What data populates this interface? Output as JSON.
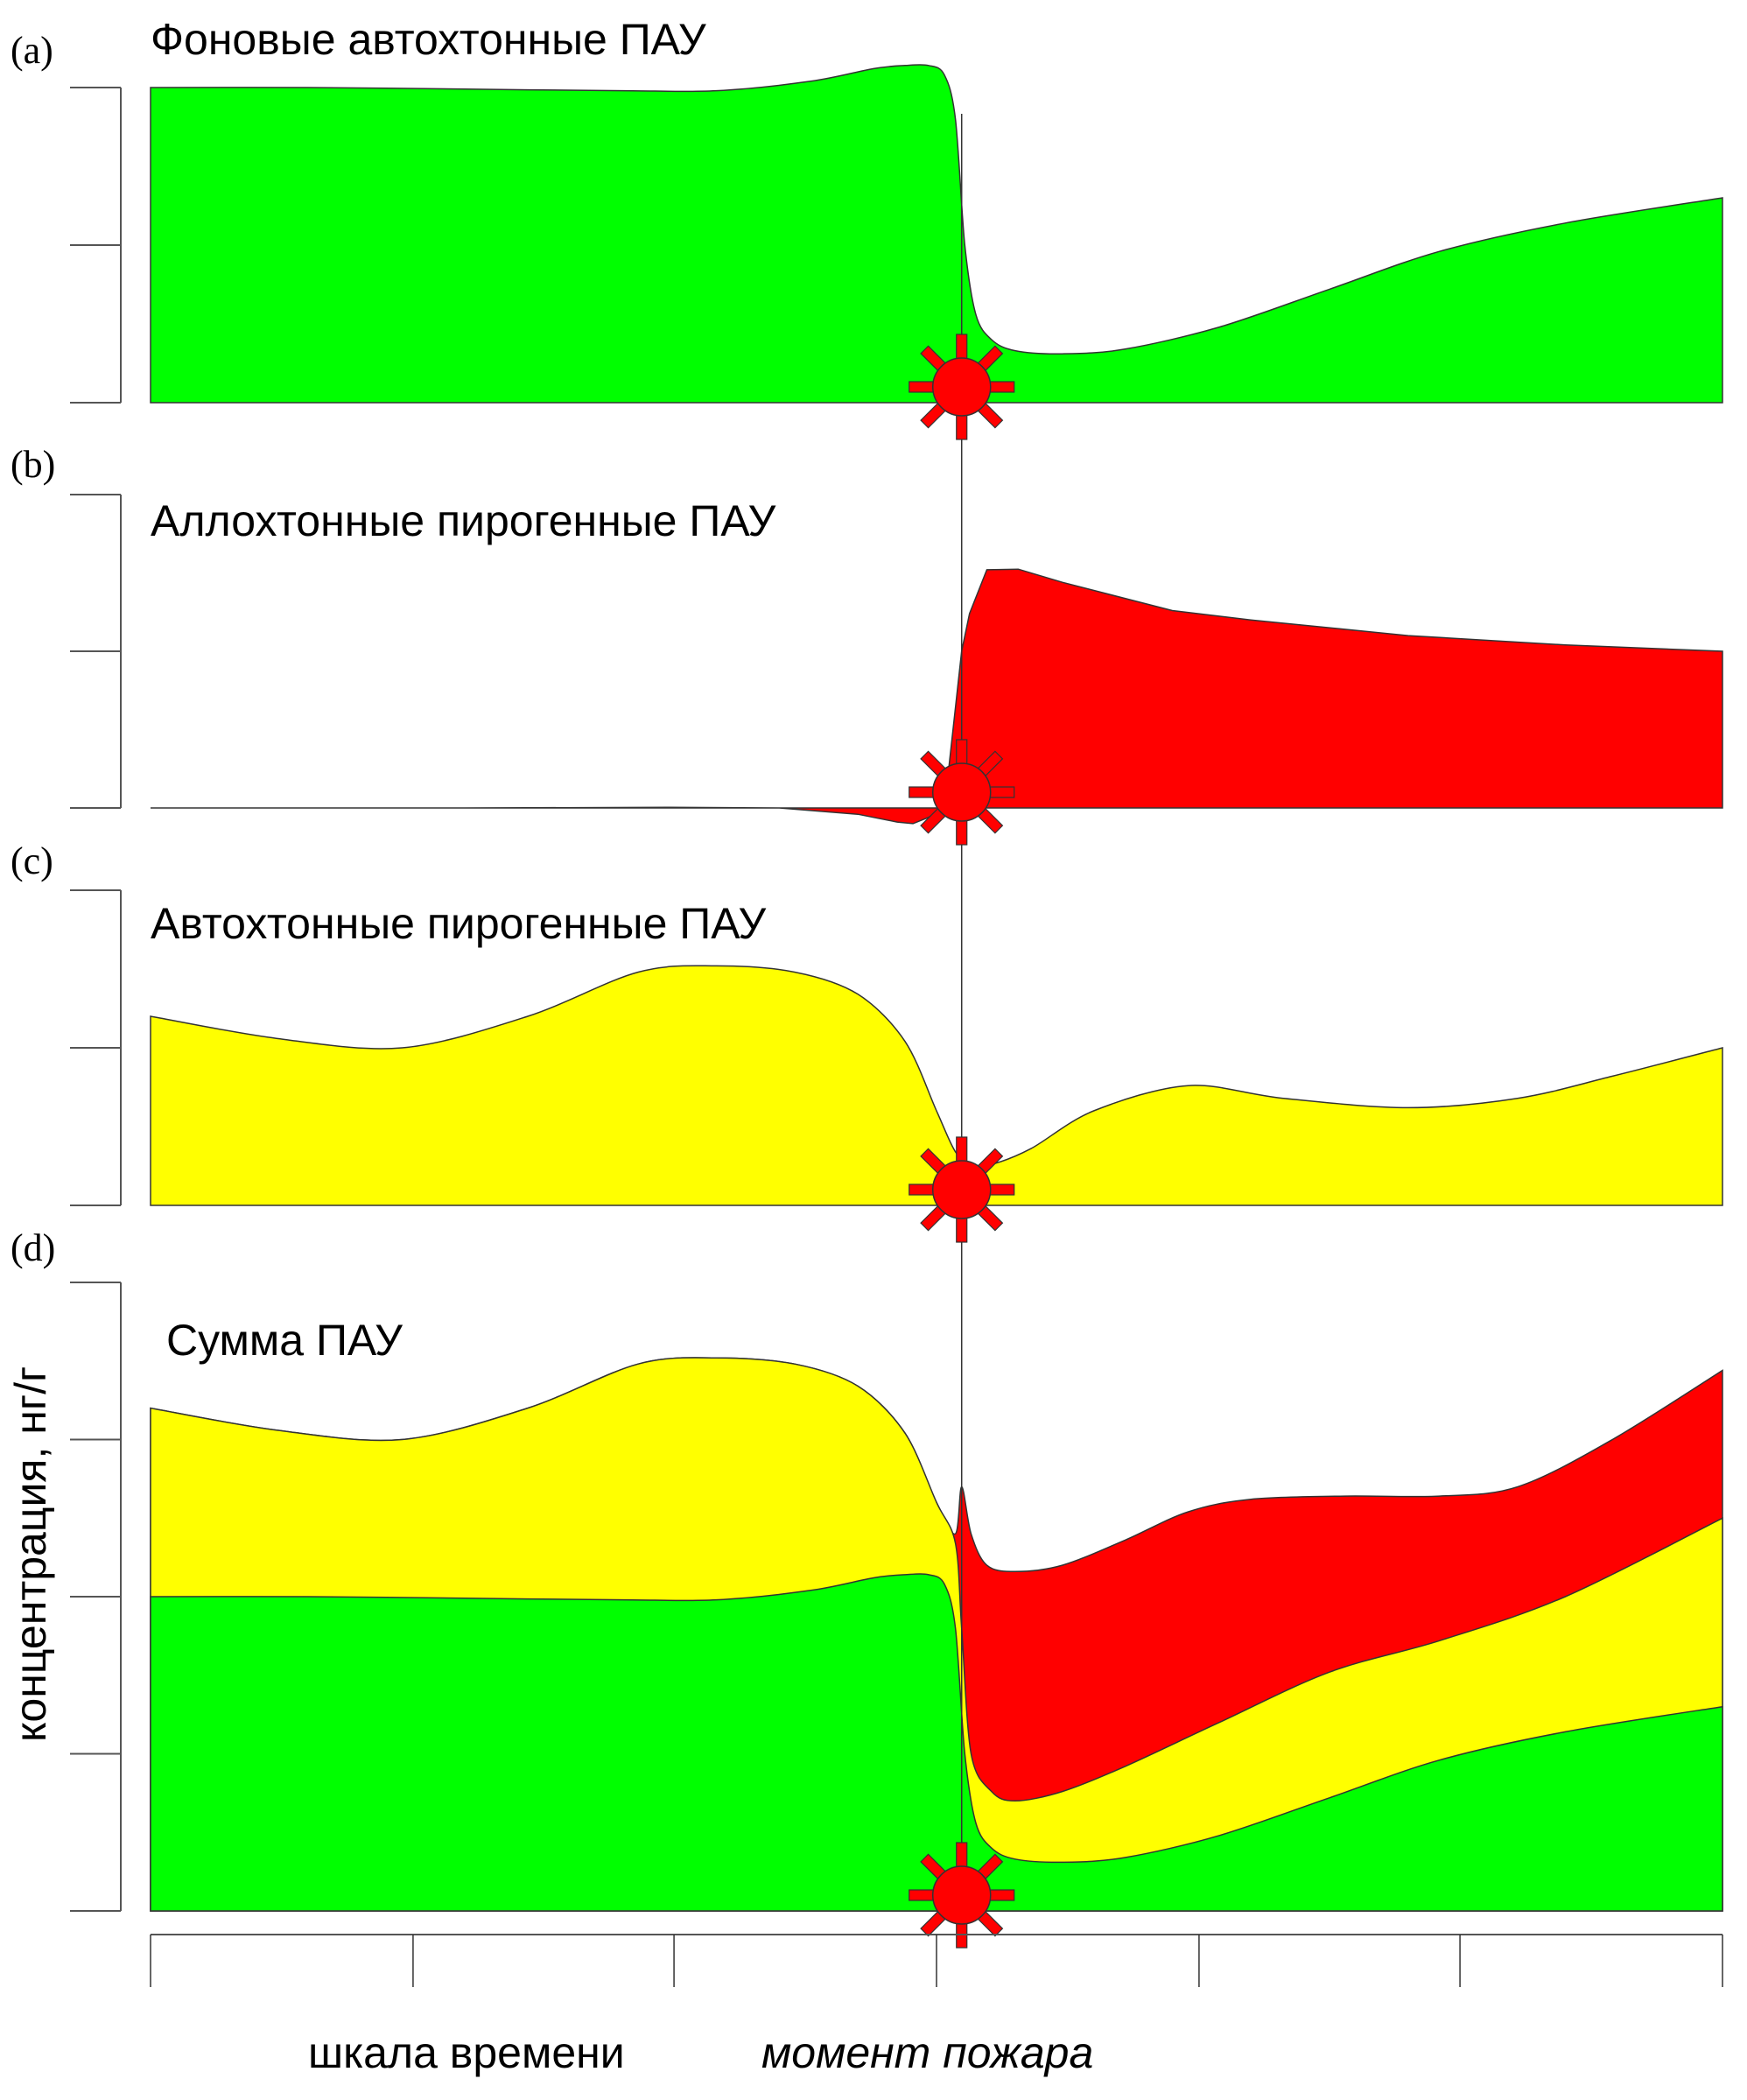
{
  "colors": {
    "background_pah": "#00ff00",
    "allochthonous_pyrogenic_pah": "#ff0000",
    "autochthonous_pyrogenic_pah": "#ffff00",
    "outline": "#333333",
    "fire_marker": "#ff0000"
  },
  "chart_data": [
    {
      "id": "a",
      "type": "area",
      "panel_label": "(a)",
      "title": "Фоновые автохтонные ПАУ",
      "xlabel": "",
      "ylabel": "",
      "xlim": [
        0,
        100
      ],
      "ylim": [
        0,
        1
      ],
      "yticks": [
        0,
        0.5,
        1
      ],
      "grid": false,
      "series": [
        {
          "name": "Фоновые автохтонные ПАУ",
          "color": "#00ff00",
          "x": [
            0,
            10,
            20,
            30,
            36,
            42,
            46,
            48,
            49.5,
            50.5,
            51.2,
            51.8,
            52.5,
            53.5,
            55,
            58,
            62,
            68,
            75,
            82,
            90,
            100
          ],
          "y": [
            1.0,
            1.0,
            0.995,
            0.99,
            0.99,
            1.02,
            1.06,
            1.07,
            1.07,
            1.04,
            0.9,
            0.5,
            0.28,
            0.2,
            0.165,
            0.155,
            0.17,
            0.24,
            0.36,
            0.48,
            0.57,
            0.65
          ]
        }
      ]
    },
    {
      "id": "b",
      "type": "area",
      "panel_label": "(b)",
      "title": "Аллохтонные пирогенные ПАУ",
      "xlabel": "",
      "ylabel": "",
      "xlim": [
        0,
        100
      ],
      "ylim": [
        0,
        1
      ],
      "yticks": [
        0,
        0.5,
        1
      ],
      "grid": false,
      "series": [
        {
          "name": "Аллохтонные пирогенные ПАУ",
          "color": "#ff0000",
          "x": [
            0,
            20,
            33,
            40,
            45,
            47.5,
            48.5,
            49.5,
            50.5,
            51.6,
            52.1,
            53.2,
            55.2,
            58,
            65,
            70,
            80,
            90,
            100
          ],
          "y": [
            0.0,
            0.0,
            0.002,
            0.0,
            -0.02,
            -0.045,
            -0.05,
            -0.03,
            0.0,
            0.5,
            0.62,
            0.76,
            0.762,
            0.72,
            0.63,
            0.6,
            0.55,
            0.52,
            0.5
          ]
        }
      ]
    },
    {
      "id": "c",
      "type": "area",
      "panel_label": "(c)",
      "title": "Автохтонные пирогенные ПАУ",
      "xlabel": "",
      "ylabel": "",
      "xlim": [
        0,
        100
      ],
      "ylim": [
        0,
        1
      ],
      "yticks": [
        0,
        0.5,
        1
      ],
      "grid": false,
      "series": [
        {
          "name": "Автохтонные пирогенные ПАУ",
          "color": "#ffff00",
          "x": [
            0,
            8,
            16,
            24,
            31,
            36,
            41,
            45,
            48,
            50,
            51.2,
            52.2,
            53.5,
            56,
            60,
            66,
            72,
            80,
            87,
            93,
            100
          ],
          "y": [
            0.6,
            0.53,
            0.5,
            0.6,
            0.74,
            0.76,
            0.74,
            0.67,
            0.52,
            0.3,
            0.17,
            0.13,
            0.13,
            0.18,
            0.3,
            0.38,
            0.34,
            0.31,
            0.34,
            0.41,
            0.5
          ]
        }
      ]
    },
    {
      "id": "d",
      "type": "area",
      "stacked": true,
      "panel_label": "(d)",
      "title": "Сумма ПАУ",
      "xlabel": "шкала времени",
      "xlabel_annotation": "момент пожара",
      "ylabel": "концентрация, нг/г",
      "xlim": [
        0,
        100
      ],
      "ylim": [
        0,
        2
      ],
      "yticks": [
        0,
        0.5,
        1,
        1.5,
        2
      ],
      "grid": false,
      "series": [
        {
          "name": "Фоновые автохтонные ПАУ (cumulative top)",
          "color": "#00ff00",
          "x": [
            0,
            10,
            20,
            30,
            36,
            42,
            46,
            48,
            49.5,
            50.5,
            51.2,
            51.8,
            52.5,
            53.5,
            55,
            58,
            62,
            68,
            75,
            82,
            90,
            100
          ],
          "y": [
            1.0,
            1.0,
            0.995,
            0.99,
            0.99,
            1.02,
            1.06,
            1.07,
            1.07,
            1.04,
            0.9,
            0.5,
            0.28,
            0.2,
            0.165,
            0.155,
            0.17,
            0.24,
            0.36,
            0.48,
            0.57,
            0.65
          ]
        },
        {
          "name": "Автохтонные пирогенные ПАУ (cumulative top)",
          "color": "#ffff00",
          "x": [
            0,
            8,
            16,
            24,
            31,
            36,
            41,
            45,
            48,
            50,
            51.2,
            51.6,
            52.2,
            53.5,
            55,
            58,
            62,
            68,
            75,
            82,
            90,
            100
          ],
          "y": [
            1.6,
            1.53,
            1.5,
            1.6,
            1.74,
            1.76,
            1.74,
            1.67,
            1.52,
            1.3,
            1.17,
            0.9,
            0.5,
            0.38,
            0.35,
            0.38,
            0.46,
            0.6,
            0.76,
            0.86,
            1.0,
            1.25
          ]
        },
        {
          "name": "Аллохтонные пирогенные ПАУ (cumulative top)",
          "color": "#ff0000",
          "x": [
            0,
            8,
            16,
            24,
            31,
            36,
            41,
            45,
            48,
            50,
            51.2,
            51.6,
            52.2,
            53.2,
            55,
            58,
            62,
            66,
            70,
            76,
            82,
            87,
            93,
            100
          ],
          "y": [
            1.6,
            1.53,
            1.5,
            1.6,
            1.74,
            1.76,
            1.74,
            1.67,
            1.52,
            1.3,
            1.2,
            1.35,
            1.2,
            1.1,
            1.08,
            1.1,
            1.18,
            1.27,
            1.31,
            1.32,
            1.32,
            1.35,
            1.5,
            1.72
          ]
        }
      ]
    }
  ],
  "fire_event": {
    "time": 51.6,
    "label": "момент пожара",
    "marker_icon": "sun-burst-icon"
  },
  "x_axis": {
    "ticks": [
      0,
      16.7,
      33.3,
      50,
      66.7,
      83.3,
      100
    ],
    "label": "шкала времени",
    "annotation": "момент пожара"
  }
}
